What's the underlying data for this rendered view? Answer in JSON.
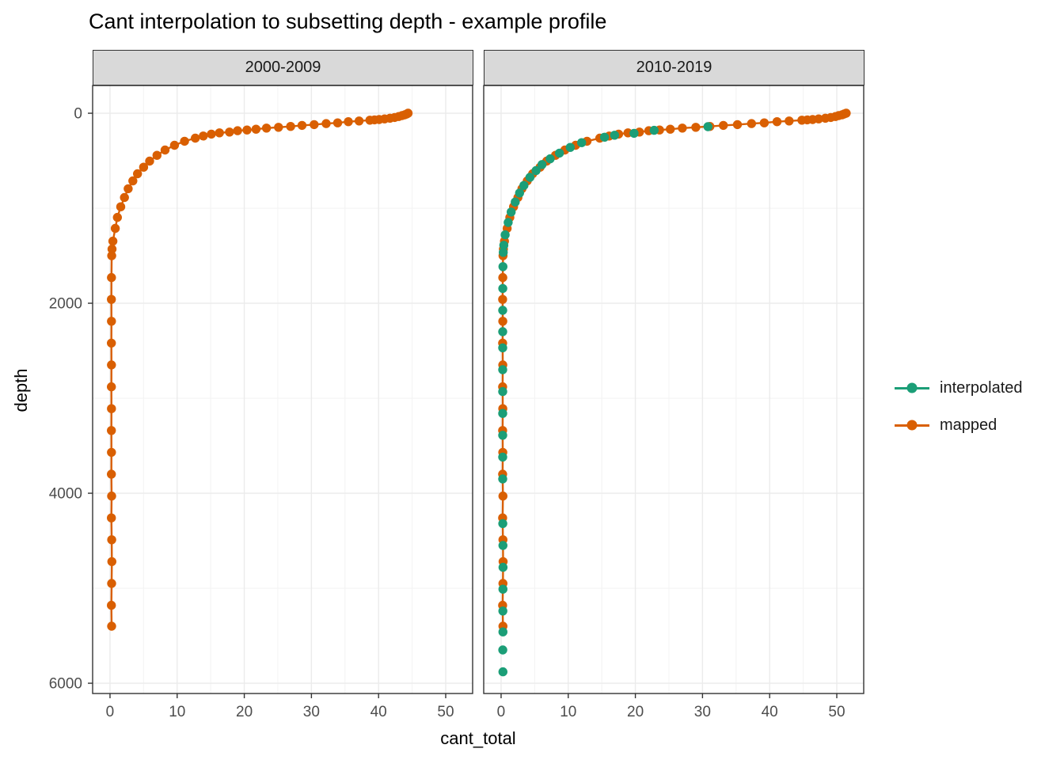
{
  "title": "Cant interpolation to subsetting depth - example profile",
  "colors": {
    "interpolated": "#1B9E77",
    "mapped": "#D95F02",
    "grid_major": "#EBEBEB",
    "grid_minor": "#F4F4F4",
    "panel_border": "#333333",
    "strip_bg": "#D9D9D9",
    "tick_label": "#4D4D4D",
    "tick_mark": "#333333"
  },
  "chart_data": {
    "type": "scatter",
    "title": "Cant interpolation to subsetting depth - example profile",
    "xlabel": "cant_total",
    "ylabel": "depth",
    "x_ticks": [
      0,
      10,
      20,
      30,
      40,
      50
    ],
    "x_minor_ticks": [
      5,
      15,
      25,
      35,
      45
    ],
    "y_ticks": [
      0,
      2000,
      4000,
      6000
    ],
    "y_minor_ticks": [
      1000,
      3000,
      5000
    ],
    "x_domain": [
      -2.59,
      54.01
    ],
    "y_domain": [
      -292,
      6108
    ],
    "y_axis_reversed": true,
    "grid": true,
    "legend_position": "right",
    "legend": [
      {
        "label": "interpolated",
        "color": "#1B9E77"
      },
      {
        "label": "mapped",
        "color": "#D95F02"
      }
    ],
    "facets": [
      {
        "label": "2000-2009",
        "series": [
          {
            "name": "mapped",
            "color": "#D95F02",
            "line": true,
            "points": [
              [
                44.4,
                0
              ],
              [
                44.2,
                8
              ],
              [
                43.9,
                16
              ],
              [
                43.5,
                25
              ],
              [
                43.0,
                35
              ],
              [
                42.4,
                45
              ],
              [
                41.7,
                52
              ],
              [
                40.9,
                60
              ],
              [
                40.1,
                66
              ],
              [
                39.4,
                70
              ],
              [
                38.7,
                73
              ],
              [
                37.1,
                81
              ],
              [
                35.5,
                89
              ],
              [
                33.9,
                101
              ],
              [
                32.2,
                109
              ],
              [
                30.4,
                120
              ],
              [
                28.6,
                128
              ],
              [
                26.9,
                139
              ],
              [
                25.1,
                148
              ],
              [
                23.3,
                156
              ],
              [
                21.75,
                168
              ],
              [
                20.4,
                176
              ],
              [
                19.0,
                184
              ],
              [
                17.8,
                198
              ],
              [
                16.3,
                206
              ],
              [
                15.1,
                220
              ],
              [
                13.9,
                240
              ],
              [
                12.7,
                262
              ],
              [
                11.1,
                295
              ],
              [
                9.6,
                337
              ],
              [
                8.2,
                387
              ],
              [
                7.0,
                443
              ],
              [
                5.9,
                504
              ],
              [
                5.0,
                568
              ],
              [
                4.1,
                637
              ],
              [
                3.4,
                712
              ],
              [
                2.7,
                795
              ],
              [
                2.15,
                887
              ],
              [
                1.6,
                985
              ],
              [
                1.1,
                1096
              ],
              [
                0.78,
                1212
              ],
              [
                0.43,
                1346
              ],
              [
                0.3,
                1430
              ],
              [
                0.25,
                1500
              ],
              [
                0.22,
                1730
              ],
              [
                0.2,
                1960
              ],
              [
                0.22,
                2190
              ],
              [
                0.2,
                2420
              ],
              [
                0.22,
                2650
              ],
              [
                0.2,
                2880
              ],
              [
                0.22,
                3110
              ],
              [
                0.2,
                3340
              ],
              [
                0.22,
                3570
              ],
              [
                0.2,
                3800
              ],
              [
                0.24,
                4030
              ],
              [
                0.2,
                4260
              ],
              [
                0.25,
                4490
              ],
              [
                0.28,
                4720
              ],
              [
                0.24,
                4950
              ],
              [
                0.2,
                5180
              ],
              [
                0.24,
                5400
              ]
            ]
          }
        ]
      },
      {
        "label": "2010-2019",
        "series": [
          {
            "name": "mapped",
            "color": "#D95F02",
            "line": true,
            "points": [
              [
                51.4,
                0
              ],
              [
                51.1,
                8
              ],
              [
                50.8,
                16
              ],
              [
                50.3,
                25
              ],
              [
                49.8,
                35
              ],
              [
                49.1,
                45
              ],
              [
                48.3,
                52
              ],
              [
                47.3,
                60
              ],
              [
                46.4,
                66
              ],
              [
                45.6,
                70
              ],
              [
                44.8,
                73
              ],
              [
                42.9,
                81
              ],
              [
                41.1,
                89
              ],
              [
                39.2,
                101
              ],
              [
                37.3,
                109
              ],
              [
                35.2,
                120
              ],
              [
                33.1,
                128
              ],
              [
                31.1,
                139
              ],
              [
                29.0,
                148
              ],
              [
                27.0,
                156
              ],
              [
                25.2,
                168
              ],
              [
                23.6,
                176
              ],
              [
                22.0,
                184
              ],
              [
                20.6,
                198
              ],
              [
                18.9,
                206
              ],
              [
                17.5,
                220
              ],
              [
                16.1,
                240
              ],
              [
                14.7,
                262
              ],
              [
                12.8,
                295
              ],
              [
                11.1,
                337
              ],
              [
                9.5,
                387
              ],
              [
                8.1,
                443
              ],
              [
                6.8,
                504
              ],
              [
                5.8,
                568
              ],
              [
                4.7,
                637
              ],
              [
                3.9,
                712
              ],
              [
                3.1,
                795
              ],
              [
                2.5,
                887
              ],
              [
                1.85,
                985
              ],
              [
                1.3,
                1096
              ],
              [
                0.9,
                1212
              ],
              [
                0.5,
                1346
              ],
              [
                0.35,
                1430
              ],
              [
                0.29,
                1500
              ],
              [
                0.25,
                1730
              ],
              [
                0.23,
                1960
              ],
              [
                0.25,
                2190
              ],
              [
                0.23,
                2420
              ],
              [
                0.25,
                2650
              ],
              [
                0.23,
                2880
              ],
              [
                0.25,
                3110
              ],
              [
                0.23,
                3340
              ],
              [
                0.25,
                3570
              ],
              [
                0.23,
                3800
              ],
              [
                0.27,
                4030
              ],
              [
                0.23,
                4260
              ],
              [
                0.28,
                4490
              ],
              [
                0.3,
                4720
              ],
              [
                0.27,
                4950
              ],
              [
                0.23,
                5180
              ],
              [
                0.27,
                5400
              ]
            ]
          },
          {
            "name": "interpolated",
            "color": "#1B9E77",
            "line": false,
            "points": [
              [
                30.8,
                141
              ],
              [
                22.8,
                180
              ],
              [
                19.8,
                211
              ],
              [
                16.9,
                231
              ],
              [
                15.4,
                252
              ],
              [
                12.0,
                310
              ],
              [
                10.3,
                360
              ],
              [
                8.7,
                420
              ],
              [
                7.3,
                480
              ],
              [
                6.1,
                540
              ],
              [
                5.2,
                604
              ],
              [
                4.3,
                675
              ],
              [
                3.4,
                760
              ],
              [
                2.75,
                840
              ],
              [
                2.1,
                935
              ],
              [
                1.5,
                1040
              ],
              [
                1.05,
                1150
              ],
              [
                0.6,
                1280
              ],
              [
                0.4,
                1390
              ],
              [
                0.32,
                1465
              ],
              [
                0.27,
                1615
              ],
              [
                0.25,
                1845
              ],
              [
                0.24,
                2075
              ],
              [
                0.24,
                2300
              ],
              [
                0.24,
                2470
              ],
              [
                0.24,
                2700
              ],
              [
                0.24,
                2930
              ],
              [
                0.24,
                3160
              ],
              [
                0.24,
                3390
              ],
              [
                0.24,
                3620
              ],
              [
                0.24,
                3850
              ],
              [
                0.25,
                4320
              ],
              [
                0.27,
                4550
              ],
              [
                0.29,
                4780
              ],
              [
                0.28,
                5010
              ],
              [
                0.26,
                5240
              ],
              [
                0.27,
                5460
              ],
              [
                0.25,
                5650
              ],
              [
                0.27,
                5880
              ]
            ]
          }
        ]
      }
    ]
  }
}
